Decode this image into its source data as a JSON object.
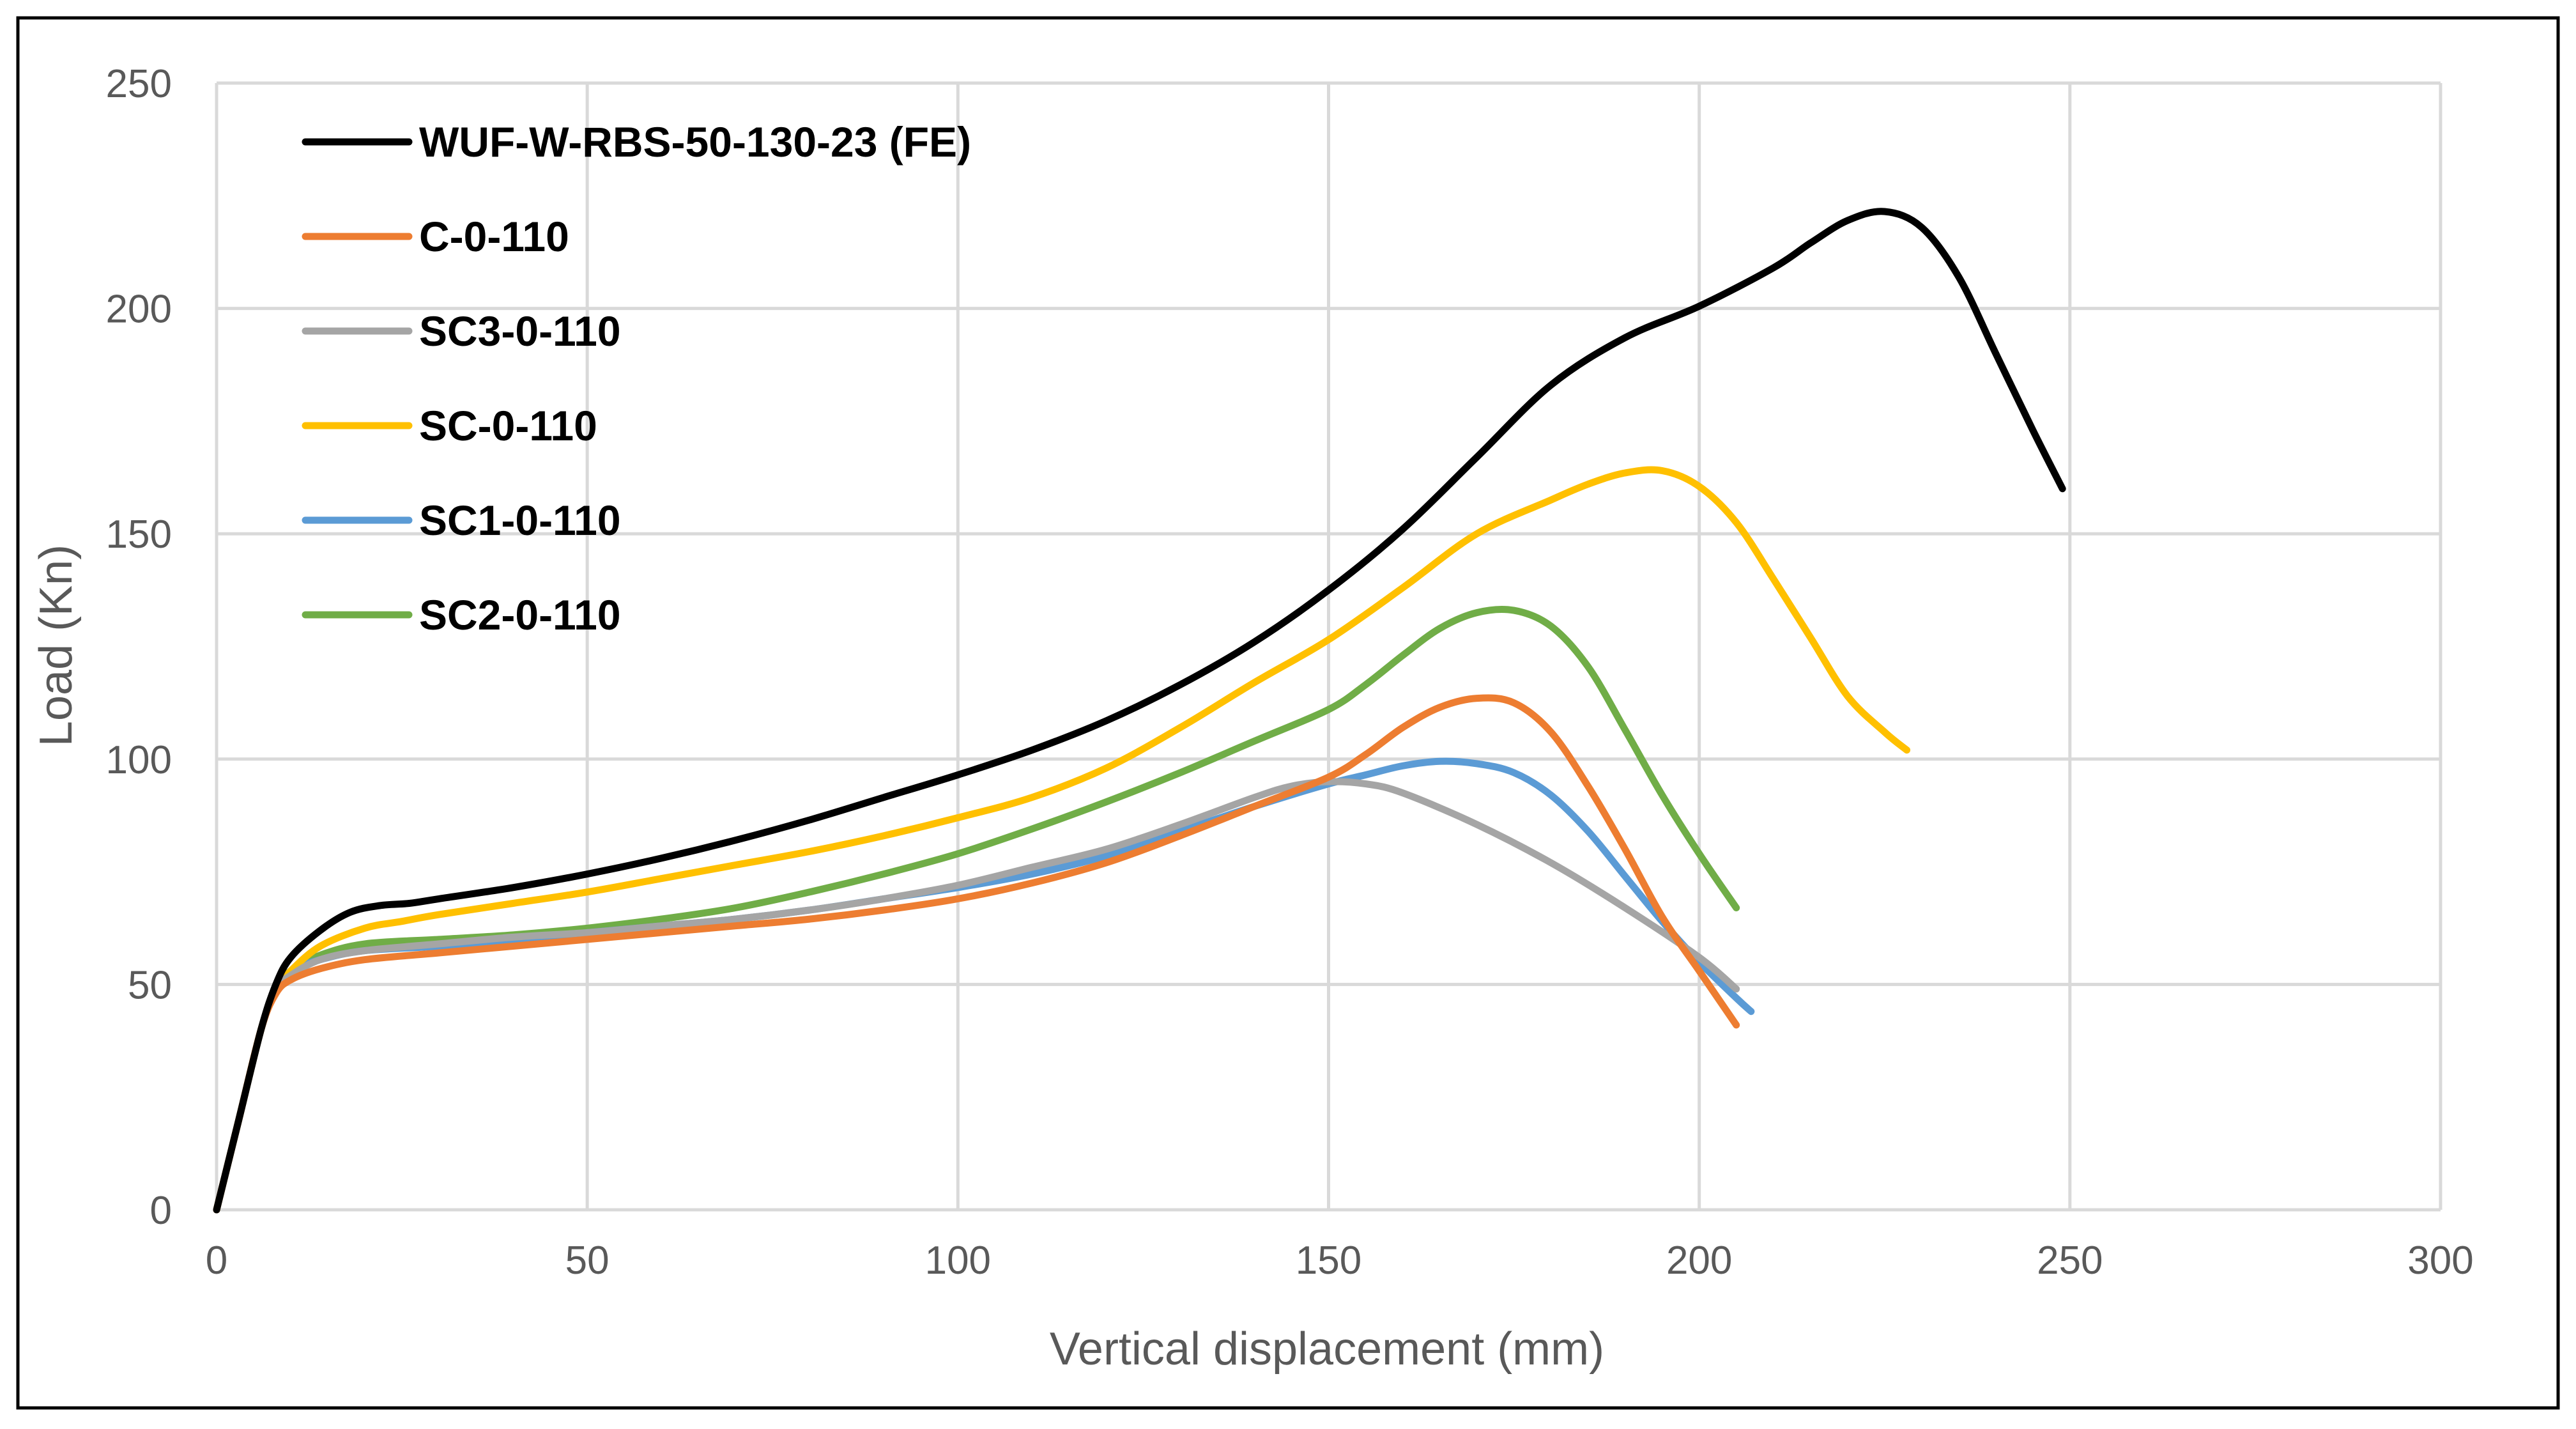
{
  "chart_data": {
    "type": "line",
    "title": "",
    "xlabel": "Vertical displacement (mm)",
    "ylabel": "Load (Kn)",
    "xlim": [
      0,
      300
    ],
    "ylim": [
      0,
      250
    ],
    "xticks": [
      0,
      50,
      100,
      150,
      200,
      250,
      300
    ],
    "yticks": [
      0,
      50,
      100,
      150,
      200,
      250
    ],
    "grid": true,
    "legend_position": "top-left",
    "series": [
      {
        "name": "WUF-W-RBS-50-130-23 (FE)",
        "color": "#000000",
        "x": [
          0,
          3,
          6,
          8,
          10,
          14,
          18,
          22,
          26,
          30,
          40,
          50,
          60,
          70,
          80,
          90,
          100,
          110,
          120,
          130,
          140,
          150,
          160,
          170,
          180,
          190,
          200,
          210,
          215,
          220,
          225,
          230,
          235,
          240,
          245,
          249
        ],
        "y": [
          0,
          20,
          40,
          50,
          56,
          62,
          66,
          67.5,
          68,
          69,
          71.5,
          74.5,
          78,
          82,
          86.5,
          91.5,
          96.5,
          102,
          108.5,
          116.5,
          126,
          137.5,
          151,
          167,
          183,
          193.5,
          200.5,
          209,
          214.5,
          219.5,
          221.5,
          218,
          207,
          190,
          173,
          160
        ]
      },
      {
        "name": "C-0-110",
        "color": "#ED7D31",
        "x": [
          0,
          3,
          6,
          8,
          10,
          14,
          20,
          30,
          40,
          50,
          60,
          70,
          80,
          90,
          100,
          110,
          120,
          130,
          140,
          150,
          155,
          160,
          165,
          170,
          175,
          180,
          185,
          190,
          195,
          200,
          205
        ],
        "y": [
          0,
          20,
          40,
          48,
          51,
          53.5,
          55.5,
          57,
          58.5,
          60,
          61.5,
          63,
          64.5,
          66.5,
          69,
          72.5,
          77,
          83,
          89.5,
          96,
          101,
          107,
          111.5,
          113.5,
          112.5,
          106,
          94,
          80,
          65,
          53,
          41
        ]
      },
      {
        "name": "SC3-0-110",
        "color": "#A5A5A5",
        "x": [
          0,
          3,
          6,
          8,
          10,
          14,
          20,
          30,
          40,
          50,
          60,
          70,
          80,
          90,
          100,
          110,
          120,
          130,
          140,
          145,
          150,
          155,
          160,
          170,
          180,
          190,
          200,
          205
        ],
        "y": [
          0,
          20,
          40,
          49,
          52,
          55.5,
          57.5,
          59,
          60.5,
          61.5,
          63,
          64.5,
          66.5,
          69,
          72,
          76,
          80,
          85.5,
          91.5,
          94,
          95,
          94.5,
          92.5,
          85.5,
          77,
          67,
          56,
          49
        ]
      },
      {
        "name": "SC-0-110",
        "color": "#FFC000",
        "x": [
          0,
          3,
          6,
          8,
          10,
          14,
          20,
          25,
          30,
          40,
          50,
          60,
          70,
          80,
          90,
          100,
          110,
          120,
          130,
          140,
          150,
          160,
          170,
          180,
          185,
          190,
          195,
          200,
          205,
          210,
          215,
          220,
          225,
          228
        ],
        "y": [
          0,
          20,
          40,
          49,
          53,
          58.5,
          62.5,
          64,
          65.5,
          68,
          70.5,
          73.5,
          76.5,
          79.5,
          83,
          87,
          91.5,
          98,
          107,
          117,
          126.5,
          138,
          150,
          157.5,
          161,
          163.5,
          164,
          160.5,
          152.5,
          140,
          127,
          114,
          106,
          102
        ]
      },
      {
        "name": "SC1-0-110",
        "color": "#5B9BD5",
        "x": [
          0,
          3,
          6,
          8,
          10,
          14,
          20,
          30,
          40,
          50,
          60,
          70,
          80,
          90,
          100,
          110,
          120,
          130,
          140,
          150,
          155,
          160,
          165,
          170,
          175,
          180,
          185,
          190,
          195,
          200,
          205,
          207
        ],
        "y": [
          0,
          20,
          40,
          49,
          53,
          55.5,
          57.5,
          58.5,
          60,
          61.5,
          63,
          64.5,
          66.5,
          69,
          71.5,
          74.5,
          78.5,
          84,
          89.5,
          94.5,
          96.5,
          98.5,
          99.5,
          99,
          97,
          92,
          84,
          74,
          64,
          55,
          47,
          44
        ]
      },
      {
        "name": "SC2-0-110",
        "color": "#70AD47",
        "x": [
          0,
          3,
          6,
          8,
          10,
          14,
          20,
          30,
          40,
          50,
          60,
          70,
          80,
          90,
          100,
          110,
          120,
          130,
          140,
          150,
          155,
          160,
          165,
          170,
          175,
          180,
          185,
          190,
          195,
          200,
          205
        ],
        "y": [
          0,
          20,
          40,
          49,
          53,
          56.5,
          59,
          60,
          61,
          62.5,
          64.5,
          67,
          70.5,
          74.5,
          79,
          84.5,
          90.5,
          97,
          104,
          111,
          116.5,
          123,
          129,
          132.5,
          133,
          129.5,
          120.5,
          106.5,
          92,
          79,
          67
        ]
      }
    ]
  }
}
